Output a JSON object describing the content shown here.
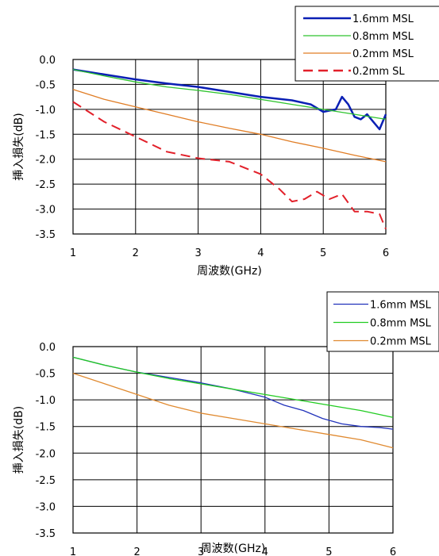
{
  "chart_data": [
    {
      "type": "line",
      "title": "",
      "xlabel": "周波数(GHz)",
      "ylabel": "挿入損失(dB)",
      "xlim": [
        1,
        6
      ],
      "ylim": [
        -3.5,
        0.0
      ],
      "x_ticks": [
        "1",
        "2",
        "3",
        "4",
        "5",
        "6"
      ],
      "y_ticks": [
        "0.0",
        "-0.5",
        "-1.0",
        "-1.5",
        "-2.0",
        "-2.5",
        "-3.0",
        "-3.5"
      ],
      "grid": true,
      "legend_position": "top-right",
      "series": [
        {
          "name": "1.6mm MSL",
          "color": "#0a1fb4",
          "dash": "solid",
          "x": [
            1.0,
            1.5,
            2.0,
            2.5,
            3.0,
            3.5,
            4.0,
            4.5,
            4.8,
            5.0,
            5.2,
            5.3,
            5.4,
            5.5,
            5.6,
            5.7,
            5.8,
            5.9,
            6.0
          ],
          "y": [
            -0.2,
            -0.3,
            -0.4,
            -0.48,
            -0.55,
            -0.65,
            -0.75,
            -0.82,
            -0.9,
            -1.05,
            -1.0,
            -0.75,
            -0.9,
            -1.15,
            -1.2,
            -1.1,
            -1.25,
            -1.4,
            -1.1
          ]
        },
        {
          "name": "0.8mm MSL",
          "color": "#2fc42f",
          "dash": "solid",
          "x": [
            1.0,
            1.5,
            2.0,
            2.5,
            3.0,
            3.5,
            4.0,
            4.5,
            5.0,
            5.5,
            6.0
          ],
          "y": [
            -0.2,
            -0.33,
            -0.45,
            -0.55,
            -0.62,
            -0.7,
            -0.8,
            -0.9,
            -1.0,
            -1.1,
            -1.2
          ]
        },
        {
          "name": "0.2mm MSL",
          "color": "#e07d25",
          "dash": "solid",
          "x": [
            1.0,
            1.5,
            2.0,
            2.5,
            3.0,
            3.5,
            4.0,
            4.5,
            5.0,
            5.5,
            6.0
          ],
          "y": [
            -0.6,
            -0.8,
            -0.95,
            -1.1,
            -1.25,
            -1.38,
            -1.5,
            -1.65,
            -1.78,
            -1.92,
            -2.05
          ]
        },
        {
          "name": "0.2mm SL",
          "color": "#e2202a",
          "dash": "dashed",
          "x": [
            1.0,
            1.5,
            2.0,
            2.5,
            3.0,
            3.5,
            4.0,
            4.3,
            4.5,
            4.7,
            4.9,
            5.1,
            5.3,
            5.5,
            5.7,
            5.9,
            6.0
          ],
          "y": [
            -0.85,
            -1.25,
            -1.55,
            -1.85,
            -1.98,
            -2.05,
            -2.3,
            -2.6,
            -2.85,
            -2.8,
            -2.65,
            -2.8,
            -2.7,
            -3.05,
            -3.05,
            -3.1,
            -3.4
          ]
        }
      ]
    },
    {
      "type": "line",
      "title": "",
      "xlabel": "周波数(GHz)",
      "ylabel": "挿入損失(dB)",
      "xlim": [
        1,
        6
      ],
      "ylim": [
        -3.5,
        0.0
      ],
      "x_ticks": [
        "1",
        "2",
        "3",
        "4",
        "5",
        "6"
      ],
      "y_ticks": [
        "0.0",
        "-0.5",
        "-1.0",
        "-1.5",
        "-2.0",
        "-2.5",
        "-3.0",
        "-3.5"
      ],
      "grid": true,
      "legend_position": "top-right",
      "series": [
        {
          "name": "1.6mm MSL",
          "color": "#2233bb",
          "dash": "solid",
          "x": [
            1.0,
            1.5,
            2.0,
            2.5,
            3.0,
            3.5,
            4.0,
            4.3,
            4.6,
            4.9,
            5.2,
            5.5,
            5.8,
            6.0
          ],
          "y": [
            -0.2,
            -0.35,
            -0.48,
            -0.58,
            -0.68,
            -0.8,
            -0.95,
            -1.1,
            -1.2,
            -1.35,
            -1.45,
            -1.5,
            -1.52,
            -1.55
          ]
        },
        {
          "name": "0.8mm MSL",
          "color": "#22cc22",
          "dash": "solid",
          "x": [
            1.0,
            1.5,
            2.0,
            2.5,
            3.0,
            3.5,
            4.0,
            4.5,
            5.0,
            5.5,
            6.0
          ],
          "y": [
            -0.2,
            -0.35,
            -0.48,
            -0.6,
            -0.7,
            -0.8,
            -0.9,
            -1.0,
            -1.1,
            -1.2,
            -1.33
          ]
        },
        {
          "name": "0.2mm MSL",
          "color": "#e08a30",
          "dash": "solid",
          "x": [
            1.0,
            1.5,
            2.0,
            2.5,
            3.0,
            3.5,
            4.0,
            4.5,
            5.0,
            5.5,
            6.0
          ],
          "y": [
            -0.5,
            -0.7,
            -0.9,
            -1.1,
            -1.25,
            -1.35,
            -1.45,
            -1.55,
            -1.65,
            -1.75,
            -1.9
          ]
        }
      ]
    }
  ]
}
